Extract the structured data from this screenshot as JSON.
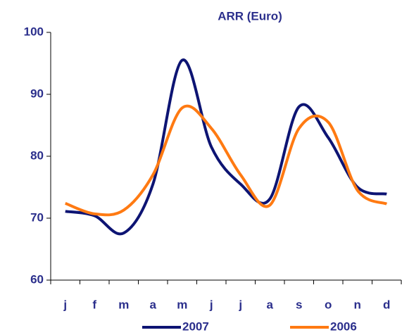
{
  "chart_data": {
    "type": "line",
    "title": "ARR (Euro)",
    "categories": [
      "j",
      "f",
      "m",
      "a",
      "m",
      "j",
      "j",
      "a",
      "s",
      "o",
      "n",
      "d"
    ],
    "series": [
      {
        "name": "2007",
        "color": "#0d1473",
        "values": [
          71.1,
          70.4,
          67.6,
          75.5,
          95.5,
          81.5,
          75.5,
          73.1,
          88.0,
          83.0,
          75.0,
          73.9
        ]
      },
      {
        "name": "2006",
        "color": "#ff7a12",
        "values": [
          72.4,
          70.7,
          71.3,
          77.0,
          87.8,
          84.5,
          77.0,
          72.1,
          84.5,
          85.5,
          74.5,
          72.3
        ]
      }
    ],
    "ylim": [
      60,
      100
    ],
    "yticks": [
      60,
      70,
      80,
      90,
      100
    ],
    "smooth": true,
    "legend": "bottom"
  }
}
